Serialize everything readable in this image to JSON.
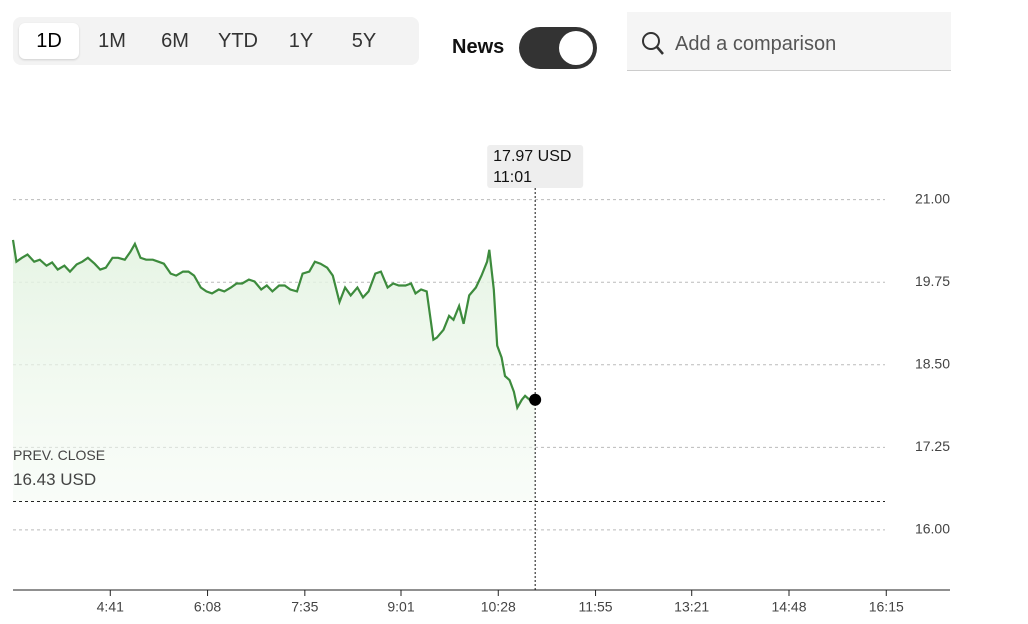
{
  "toolbar": {
    "ranges": [
      "1D",
      "1M",
      "6M",
      "YTD",
      "1Y",
      "5Y"
    ],
    "news_label": "News",
    "search_placeholder": "Add a comparison"
  },
  "chart_data": {
    "type": "line",
    "x": [
      194,
      197,
      202,
      207,
      213,
      218,
      224,
      229,
      234,
      240,
      245,
      251,
      256,
      261,
      267,
      272,
      277,
      283,
      288,
      294,
      299,
      303,
      308,
      313,
      319,
      324,
      329,
      335,
      340,
      346,
      351,
      356,
      362,
      367,
      372,
      378,
      383,
      389,
      394,
      399,
      405,
      410,
      416,
      421,
      426,
      432,
      437,
      442,
      448,
      453,
      459,
      464,
      469,
      475,
      480,
      486,
      491,
      496,
      502,
      507,
      512,
      518,
      523,
      529,
      534,
      539,
      545,
      550,
      554,
      559,
      564,
      570,
      573,
      579,
      584,
      588,
      593,
      597,
      602,
      608,
      613,
      618,
      620,
      624,
      627,
      631,
      634,
      638,
      642,
      645,
      649,
      652,
      656,
      661
    ],
    "series": [
      {
        "color": "#3d8b3d",
        "values": [
          20.39,
          20.06,
          20.12,
          20.17,
          20.06,
          20.09,
          20.0,
          20.05,
          19.94,
          20.0,
          19.91,
          20.02,
          20.06,
          20.12,
          20.03,
          19.94,
          19.97,
          20.12,
          20.12,
          20.09,
          20.21,
          20.33,
          20.12,
          20.09,
          20.09,
          20.06,
          20.03,
          19.88,
          19.85,
          19.91,
          19.91,
          19.85,
          19.67,
          19.61,
          19.58,
          19.64,
          19.61,
          19.67,
          19.73,
          19.73,
          19.79,
          19.76,
          19.64,
          19.7,
          19.61,
          19.7,
          19.7,
          19.64,
          19.61,
          19.88,
          19.91,
          20.06,
          20.03,
          19.97,
          19.85,
          19.45,
          19.67,
          19.55,
          19.67,
          19.52,
          19.61,
          19.88,
          19.91,
          19.67,
          19.73,
          19.7,
          19.7,
          19.73,
          19.58,
          19.64,
          19.61,
          18.88,
          18.91,
          19.03,
          19.24,
          19.18,
          19.39,
          19.12,
          19.55,
          19.67,
          19.85,
          20.06,
          20.24,
          19.64,
          18.79,
          18.61,
          18.33,
          18.27,
          18.09,
          17.85,
          17.97,
          18.03,
          17.97,
          17.97
        ]
      }
    ],
    "xlim": [
      194,
      1032
    ],
    "xticks": [
      {
        "value": 281,
        "label": "4:41"
      },
      {
        "value": 368,
        "label": "6:08"
      },
      {
        "value": 455,
        "label": "7:35"
      },
      {
        "value": 541,
        "label": "9:01"
      },
      {
        "value": 628,
        "label": "10:28"
      },
      {
        "value": 715,
        "label": "11:55"
      },
      {
        "value": 801,
        "label": "13:21"
      },
      {
        "value": 888,
        "label": "14:48"
      },
      {
        "value": 975,
        "label": "16:15"
      }
    ],
    "ylim": [
      15.09,
      21.6
    ],
    "yticks": [
      {
        "value": 21,
        "label": "21.00"
      },
      {
        "value": 19.75,
        "label": "19.75"
      },
      {
        "value": 18.5,
        "label": "18.50"
      },
      {
        "value": 17.25,
        "label": "17.25"
      },
      {
        "value": 16,
        "label": "16.00"
      }
    ],
    "grid": true,
    "prev_close_label": "PREV. CLOSE",
    "prev_close": {
      "value": 16.43,
      "label": "16.43 USD"
    },
    "tooltip_value": {
      "value": 17.97,
      "label": "17.97 USD"
    },
    "tooltip_time": {
      "value": 661,
      "label": "11:01"
    }
  }
}
